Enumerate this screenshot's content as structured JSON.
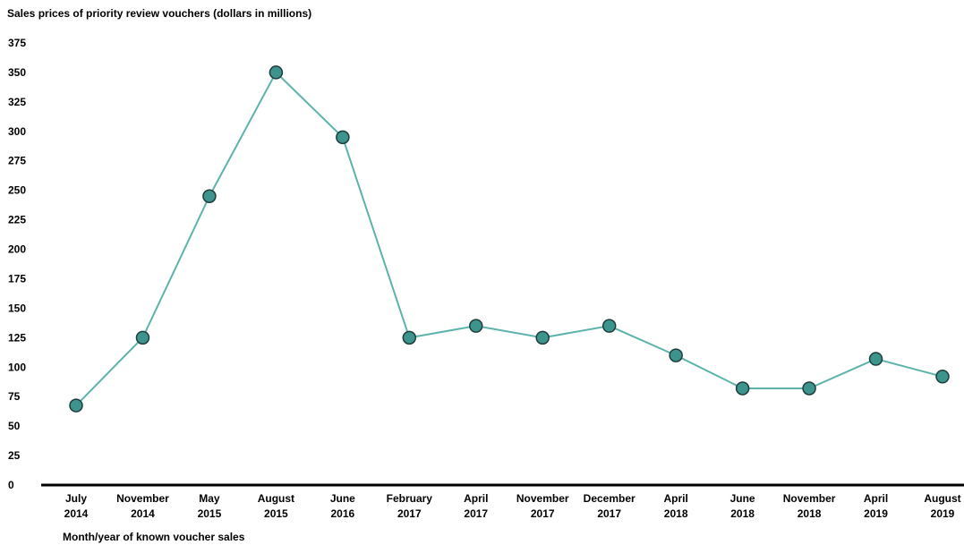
{
  "chart_data": {
    "type": "line",
    "title": "Sales prices of priority review vouchers (dollars in millions)",
    "xlabel": "Month/year of known voucher sales",
    "ylabel": "",
    "ylim": [
      0,
      375
    ],
    "yticks": [
      0,
      25,
      50,
      75,
      100,
      125,
      150,
      175,
      200,
      225,
      250,
      275,
      300,
      325,
      350,
      375
    ],
    "grid": false,
    "categories": [
      [
        "July",
        "2014"
      ],
      [
        "November",
        "2014"
      ],
      [
        "May",
        "2015"
      ],
      [
        "August",
        "2015"
      ],
      [
        "June",
        "2016"
      ],
      [
        "February",
        "2017"
      ],
      [
        "April",
        "2017"
      ],
      [
        "November",
        "2017"
      ],
      [
        "December",
        "2017"
      ],
      [
        "April",
        "2018"
      ],
      [
        "June",
        "2018"
      ],
      [
        "November",
        "2018"
      ],
      [
        "April",
        "2019"
      ],
      [
        "August",
        "2019"
      ]
    ],
    "series": [
      {
        "values": [
          67.5,
          125,
          245,
          350,
          295,
          125,
          135,
          125,
          135,
          110,
          82,
          82,
          107,
          92
        ]
      }
    ],
    "colors": {
      "line": "#5db3ab",
      "marker_fill": "#3d948c",
      "marker_stroke": "#1e3c3c",
      "axis": "#000000"
    }
  }
}
